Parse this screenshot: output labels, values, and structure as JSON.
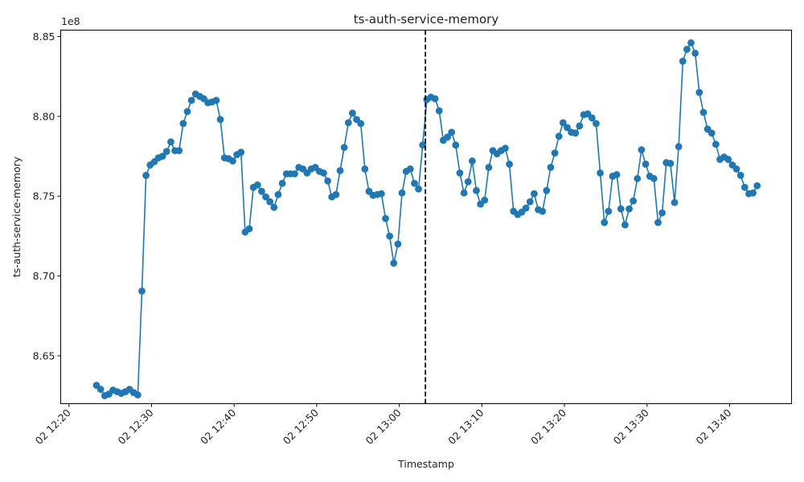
{
  "chart_data": {
    "type": "line",
    "title": "ts-auth-service-memory",
    "xlabel": "Timestamp",
    "ylabel": "ts-auth-service-memory",
    "y_offset_label": "1e8",
    "ylim": [
      862000000,
      885400000
    ],
    "xlim": [
      "2024-02-02T12:19:00",
      "2024-02-02T13:47:30"
    ],
    "y_ticks": [
      {
        "value": 865000000,
        "label": "8.65"
      },
      {
        "value": 870000000,
        "label": "8.70"
      },
      {
        "value": 875000000,
        "label": "8.75"
      },
      {
        "value": 880000000,
        "label": "8.80"
      },
      {
        "value": 885000000,
        "label": "8.85"
      }
    ],
    "x_ticks": [
      {
        "value": "2024-02-02T12:20:00",
        "label": "02 12:20"
      },
      {
        "value": "2024-02-02T12:30:00",
        "label": "02 12:30"
      },
      {
        "value": "2024-02-02T12:40:00",
        "label": "02 12:40"
      },
      {
        "value": "2024-02-02T12:50:00",
        "label": "02 12:50"
      },
      {
        "value": "2024-02-02T13:00:00",
        "label": "02 13:00"
      },
      {
        "value": "2024-02-02T13:10:00",
        "label": "02 13:10"
      },
      {
        "value": "2024-02-02T13:20:00",
        "label": "02 13:20"
      },
      {
        "value": "2024-02-02T13:30:00",
        "label": "02 13:30"
      },
      {
        "value": "2024-02-02T13:40:00",
        "label": "02 13:40"
      }
    ],
    "vline": "2024-02-02T13:03:10",
    "series_color": "#1f77b4",
    "vline_color": "#000000",
    "grid": false,
    "series": [
      {
        "x": [
          "2024-02-02T12:23:20",
          "2024-02-02T12:23:50",
          "2024-02-02T12:24:20",
          "2024-02-02T12:24:50",
          "2024-02-02T12:25:20",
          "2024-02-02T12:25:50",
          "2024-02-02T12:26:20",
          "2024-02-02T12:26:50",
          "2024-02-02T12:27:20",
          "2024-02-02T12:27:50",
          "2024-02-02T12:28:20",
          "2024-02-02T12:28:50",
          "2024-02-02T12:29:20",
          "2024-02-02T12:29:50",
          "2024-02-02T12:30:20",
          "2024-02-02T12:30:50",
          "2024-02-02T12:31:20",
          "2024-02-02T12:31:50",
          "2024-02-02T12:32:20",
          "2024-02-02T12:32:50",
          "2024-02-02T12:33:20",
          "2024-02-02T12:33:50",
          "2024-02-02T12:34:20",
          "2024-02-02T12:34:50",
          "2024-02-02T12:35:20",
          "2024-02-02T12:35:50",
          "2024-02-02T12:36:20",
          "2024-02-02T12:36:50",
          "2024-02-02T12:37:20",
          "2024-02-02T12:37:50",
          "2024-02-02T12:38:20",
          "2024-02-02T12:38:50",
          "2024-02-02T12:39:20",
          "2024-02-02T12:39:50",
          "2024-02-02T12:40:20",
          "2024-02-02T12:40:50",
          "2024-02-02T12:41:20",
          "2024-02-02T12:41:50",
          "2024-02-02T12:42:20",
          "2024-02-02T12:42:50",
          "2024-02-02T12:43:20",
          "2024-02-02T12:43:50",
          "2024-02-02T12:44:20",
          "2024-02-02T12:44:50",
          "2024-02-02T12:45:20",
          "2024-02-02T12:45:50",
          "2024-02-02T12:46:20",
          "2024-02-02T12:46:50",
          "2024-02-02T12:47:20",
          "2024-02-02T12:47:50",
          "2024-02-02T12:48:20",
          "2024-02-02T12:48:50",
          "2024-02-02T12:49:20",
          "2024-02-02T12:49:50",
          "2024-02-02T12:50:20",
          "2024-02-02T12:50:50",
          "2024-02-02T12:51:20",
          "2024-02-02T12:51:50",
          "2024-02-02T12:52:20",
          "2024-02-02T12:52:50",
          "2024-02-02T12:53:20",
          "2024-02-02T12:53:50",
          "2024-02-02T12:54:20",
          "2024-02-02T12:54:50",
          "2024-02-02T12:55:20",
          "2024-02-02T12:55:50",
          "2024-02-02T12:56:20",
          "2024-02-02T12:56:50",
          "2024-02-02T12:57:20",
          "2024-02-02T12:57:50",
          "2024-02-02T12:58:20",
          "2024-02-02T12:58:50",
          "2024-02-02T12:59:20",
          "2024-02-02T12:59:50",
          "2024-02-02T13:00:20",
          "2024-02-02T13:00:50",
          "2024-02-02T13:01:20",
          "2024-02-02T13:01:50",
          "2024-02-02T13:02:20",
          "2024-02-02T13:02:50",
          "2024-02-02T13:03:20",
          "2024-02-02T13:03:50",
          "2024-02-02T13:04:20",
          "2024-02-02T13:04:50",
          "2024-02-02T13:05:20",
          "2024-02-02T13:05:50",
          "2024-02-02T13:06:20",
          "2024-02-02T13:06:50",
          "2024-02-02T13:07:20",
          "2024-02-02T13:07:50",
          "2024-02-02T13:08:20",
          "2024-02-02T13:08:50",
          "2024-02-02T13:09:20",
          "2024-02-02T13:09:50",
          "2024-02-02T13:10:20",
          "2024-02-02T13:10:50",
          "2024-02-02T13:11:20",
          "2024-02-02T13:11:50",
          "2024-02-02T13:12:20",
          "2024-02-02T13:12:50",
          "2024-02-02T13:13:20",
          "2024-02-02T13:13:50",
          "2024-02-02T13:14:20",
          "2024-02-02T13:14:50",
          "2024-02-02T13:15:20",
          "2024-02-02T13:15:50",
          "2024-02-02T13:16:20",
          "2024-02-02T13:16:50",
          "2024-02-02T13:17:20",
          "2024-02-02T13:17:50",
          "2024-02-02T13:18:20",
          "2024-02-02T13:18:50",
          "2024-02-02T13:19:20",
          "2024-02-02T13:19:50",
          "2024-02-02T13:20:20",
          "2024-02-02T13:20:50",
          "2024-02-02T13:21:20",
          "2024-02-02T13:21:50",
          "2024-02-02T13:22:20",
          "2024-02-02T13:22:50",
          "2024-02-02T13:23:20",
          "2024-02-02T13:23:50",
          "2024-02-02T13:24:20",
          "2024-02-02T13:24:50",
          "2024-02-02T13:25:20",
          "2024-02-02T13:25:50",
          "2024-02-02T13:26:20",
          "2024-02-02T13:26:50",
          "2024-02-02T13:27:20",
          "2024-02-02T13:27:50",
          "2024-02-02T13:28:20",
          "2024-02-02T13:28:50",
          "2024-02-02T13:29:20",
          "2024-02-02T13:29:50",
          "2024-02-02T13:30:20",
          "2024-02-02T13:30:50",
          "2024-02-02T13:31:20",
          "2024-02-02T13:31:50",
          "2024-02-02T13:32:20",
          "2024-02-02T13:32:50",
          "2024-02-02T13:33:20",
          "2024-02-02T13:33:50",
          "2024-02-02T13:34:20",
          "2024-02-02T13:34:50",
          "2024-02-02T13:35:20",
          "2024-02-02T13:35:50",
          "2024-02-02T13:36:20",
          "2024-02-02T13:36:50",
          "2024-02-02T13:37:20",
          "2024-02-02T13:37:50",
          "2024-02-02T13:38:20",
          "2024-02-02T13:38:50",
          "2024-02-02T13:39:20",
          "2024-02-02T13:39:50",
          "2024-02-02T13:40:20",
          "2024-02-02T13:40:50",
          "2024-02-02T13:41:20",
          "2024-02-02T13:41:50",
          "2024-02-02T13:42:20",
          "2024-02-02T13:42:50",
          "2024-02-02T13:43:20"
        ],
        "y": [
          863150000,
          862900000,
          862500000,
          862600000,
          862850000,
          862750000,
          862650000,
          862750000,
          862900000,
          862700000,
          862550000,
          869050000,
          876300000,
          876950000,
          877150000,
          877400000,
          877500000,
          877800000,
          878400000,
          877850000,
          877850000,
          879550000,
          880300000,
          881000000,
          881400000,
          881250000,
          881100000,
          880850000,
          880900000,
          881000000,
          879800000,
          877400000,
          877350000,
          877200000,
          877600000,
          877750000,
          872750000,
          872950000,
          875550000,
          875700000,
          875300000,
          874950000,
          874650000,
          874300000,
          875100000,
          875800000,
          876400000,
          876400000,
          876400000,
          876800000,
          876700000,
          876450000,
          876700000,
          876800000,
          876550000,
          876450000,
          875950000,
          874950000,
          875100000,
          876600000,
          878050000,
          879600000,
          880200000,
          879800000,
          879550000,
          876700000,
          875300000,
          875050000,
          875100000,
          875150000,
          873600000,
          872500000,
          870800000,
          872000000,
          875200000,
          876550000,
          876700000,
          875800000,
          875450000,
          878200000,
          881050000,
          881200000,
          881100000,
          880350000,
          878500000,
          878700000,
          879000000,
          878200000,
          876450000,
          875200000,
          875900000,
          877200000,
          875350000,
          874500000,
          874750000,
          876800000,
          877850000,
          877650000,
          877850000,
          878000000,
          877000000,
          874050000,
          873850000,
          874000000,
          874250000,
          874650000,
          875150000,
          874150000,
          874050000,
          875350000,
          876800000,
          877700000,
          878750000,
          879600000,
          879300000,
          879000000,
          878950000,
          879400000,
          880100000,
          880150000,
          879900000,
          879550000,
          876450000,
          873350000,
          874050000,
          876250000,
          876350000,
          874200000,
          873200000,
          874200000,
          874700000,
          876100000,
          877900000,
          877000000,
          876250000,
          876100000,
          873350000,
          873950000,
          877100000,
          877050000,
          874600000,
          878100000,
          883450000,
          884200000,
          884600000,
          883950000,
          881500000,
          880250000,
          879200000,
          878950000,
          878250000,
          877300000,
          877450000,
          877300000,
          876950000,
          876700000,
          876300000,
          875550000,
          875150000,
          875200000,
          875650000
        ]
      }
    ]
  }
}
